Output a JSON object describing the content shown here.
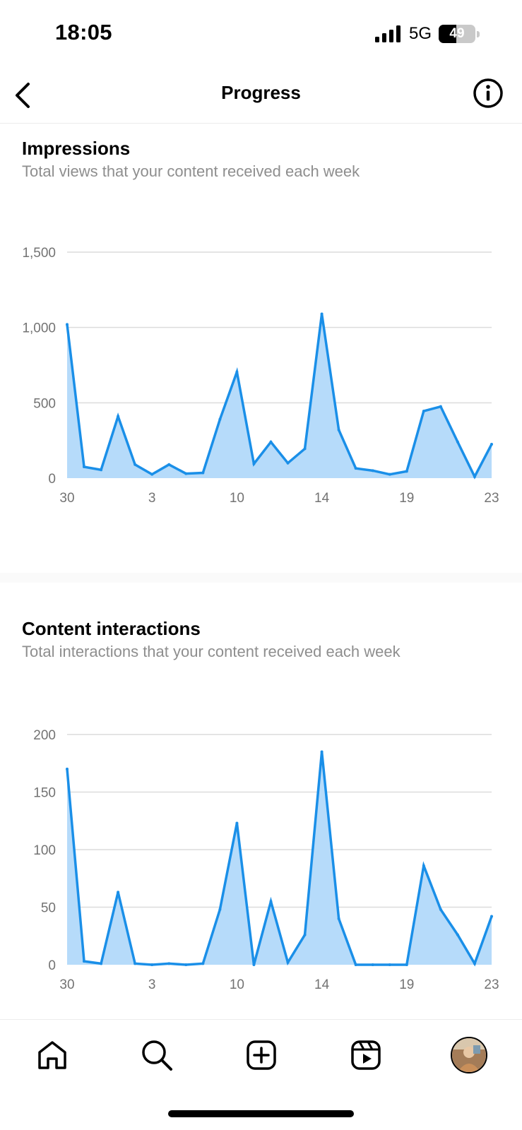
{
  "status_bar": {
    "time": "18:05",
    "network": "5G",
    "battery": "49",
    "battery_level": 0.49
  },
  "header": {
    "title": "Progress",
    "back_icon": "chevron-left-icon",
    "info_icon": "info-circle-icon"
  },
  "impressions": {
    "title": "Impressions",
    "subtitle": "Total views that your content received each week",
    "chart_data": {
      "type": "area",
      "x_tick_labels": [
        "30",
        "3",
        "10",
        "14",
        "19",
        "23"
      ],
      "y_tick_labels": [
        "0",
        "500",
        "1,000",
        "1,500"
      ],
      "ylim": [
        0,
        1500
      ],
      "grid": true,
      "values": [
        1020,
        75,
        55,
        410,
        90,
        25,
        90,
        30,
        35,
        390,
        705,
        95,
        240,
        100,
        195,
        1090,
        320,
        65,
        50,
        25,
        45,
        445,
        475,
        240,
        10,
        225
      ],
      "line_color": "#1a8fe8",
      "fill_color": "#b6dbfa"
    }
  },
  "interactions": {
    "title": "Content interactions",
    "subtitle": "Total interactions that your content received each week",
    "chart_data": {
      "type": "area",
      "x_tick_labels": [
        "30",
        "3",
        "10",
        "14",
        "19",
        "23"
      ],
      "y_tick_labels": [
        "0",
        "50",
        "100",
        "150",
        "200"
      ],
      "ylim": [
        0,
        200
      ],
      "grid": true,
      "values": [
        170,
        3,
        1,
        63,
        1,
        0,
        1,
        0,
        1,
        48,
        123,
        0,
        55,
        2,
        26,
        185,
        40,
        0,
        0,
        0,
        0,
        86,
        48,
        26,
        1,
        42
      ],
      "line_color": "#1a8fe8",
      "fill_color": "#b6dbfa"
    }
  },
  "tab_bar": {
    "items": [
      {
        "icon": "home-icon"
      },
      {
        "icon": "search-icon"
      },
      {
        "icon": "create-post-icon"
      },
      {
        "icon": "reels-icon"
      },
      {
        "icon": "profile-avatar"
      }
    ]
  },
  "colors": {
    "accent": "#1a8fe8",
    "area_fill": "#b6dbfa",
    "gridline": "#dcdcdc",
    "muted_text": "#8e8e8e",
    "axis_text": "#737373"
  }
}
